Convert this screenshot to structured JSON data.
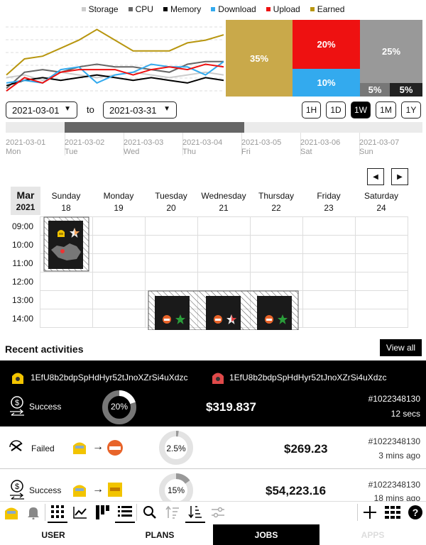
{
  "legend": [
    {
      "label": "Storage",
      "color": "#cccccc"
    },
    {
      "label": "CPU",
      "color": "#666666"
    },
    {
      "label": "Memory",
      "color": "#000000"
    },
    {
      "label": "Download",
      "color": "#33aaee"
    },
    {
      "label": "Upload",
      "color": "#ee1111"
    },
    {
      "label": "Earned",
      "color": "#b8960f"
    }
  ],
  "chart_data": {
    "type": "line",
    "x": [
      0,
      1,
      2,
      3,
      4,
      5,
      6,
      7,
      8,
      9,
      10,
      11,
      12
    ],
    "series": [
      {
        "name": "Storage",
        "color": "#cccccc",
        "values": [
          6,
          7,
          5,
          8,
          7,
          6,
          7,
          8,
          7,
          6,
          7,
          8,
          7
        ]
      },
      {
        "name": "CPU",
        "color": "#666666",
        "values": [
          2,
          8,
          9,
          8,
          10,
          11,
          10,
          10,
          9,
          8,
          11,
          12,
          12
        ]
      },
      {
        "name": "Memory",
        "color": "#000000",
        "values": [
          3,
          5,
          6,
          5,
          6,
          7,
          6,
          5,
          6,
          5,
          4,
          6,
          5
        ]
      },
      {
        "name": "Download",
        "color": "#33aaee",
        "values": [
          4,
          5,
          4,
          9,
          10,
          4,
          7,
          8,
          11,
          10,
          10,
          7,
          12
        ]
      },
      {
        "name": "Upload",
        "color": "#ee1111",
        "values": [
          1,
          6,
          4,
          8,
          9,
          9,
          9,
          7,
          9,
          10,
          9,
          11,
          10
        ]
      },
      {
        "name": "Earned",
        "color": "#b8960f",
        "values": [
          7,
          13,
          14,
          17,
          20,
          24,
          20,
          16,
          16,
          16,
          19,
          20,
          22
        ]
      }
    ]
  },
  "treemap": {
    "earned": "35%",
    "upload": "20%",
    "download": "10%",
    "storage": "25%",
    "cpu": "5%",
    "memory": "5%"
  },
  "date_range": {
    "from": "2021-03-01",
    "to_label": "to",
    "to": "2021-03-31"
  },
  "ranges": [
    "1H",
    "1D",
    "1W",
    "1M",
    "1Y"
  ],
  "active_range": "1W",
  "timeline": [
    {
      "date": "2021-03-01",
      "day": "Mon"
    },
    {
      "date": "2021-03-02",
      "day": "Tue"
    },
    {
      "date": "2021-03-03",
      "day": "Wed"
    },
    {
      "date": "2021-03-04",
      "day": "Thu"
    },
    {
      "date": "2021-03-05",
      "day": "Fri"
    },
    {
      "date": "2021-03-06",
      "day": "Sat"
    },
    {
      "date": "2021-03-07",
      "day": "Sun"
    }
  ],
  "calendar": {
    "month": "Mar",
    "year": "2021",
    "days": [
      {
        "name": "Sunday",
        "num": "18"
      },
      {
        "name": "Monday",
        "num": "19"
      },
      {
        "name": "Tuesday",
        "num": "20"
      },
      {
        "name": "Wednesday",
        "num": "21"
      },
      {
        "name": "Thursday",
        "num": "22"
      },
      {
        "name": "Friday",
        "num": "23"
      },
      {
        "name": "Saturday",
        "num": "24"
      }
    ],
    "times": [
      "09:00",
      "10:00",
      "11:00",
      "12:00",
      "13:00",
      "14:00"
    ]
  },
  "activities": {
    "title": "Recent activities",
    "view_all": "View all",
    "highlight": {
      "from_id": "1EfU8b2bdpSpHdHyr52tJnoXZrSi4uXdzc",
      "to_id": "1EfU8b2bdpSpHdHyr52tJnoXZrSi4uXdzc",
      "status": "Success",
      "percent": "20%",
      "percent_value": 0.2,
      "amount": "$319.837",
      "tx": "#1022348130",
      "time": "12 secs"
    },
    "rows": [
      {
        "status": "Failed",
        "percent": "2.5%",
        "percent_value": 0.025,
        "amount": "$269.23",
        "tx": "#1022348130",
        "time": "3 mins ago"
      },
      {
        "status": "Success",
        "percent": "15%",
        "percent_value": 0.15,
        "amount": "$54,223.16",
        "tx": "#1022348130",
        "time": "18 mins ago"
      }
    ],
    "arrow": "→"
  },
  "tabs": [
    "USER",
    "PLANS",
    "JOBS",
    "APPS"
  ],
  "active_tab": "JOBS"
}
